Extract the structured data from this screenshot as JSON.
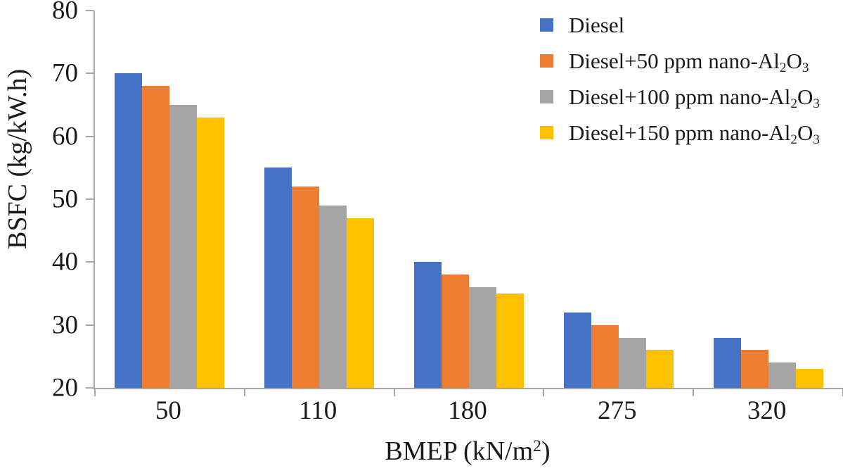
{
  "chart_data": {
    "type": "bar",
    "title": "",
    "xlabel": "BMEP (kN/m2)",
    "xlabel_segments": [
      {
        "t": "BMEP (kN/m"
      },
      {
        "t": "2",
        "style": "sup"
      },
      {
        "t": ")"
      }
    ],
    "ylabel": "BSFC (kg/kW.h)",
    "categories": [
      "50",
      "110",
      "180",
      "275",
      "320"
    ],
    "series": [
      {
        "name": "Diesel",
        "color": "#4472C4",
        "values": [
          70,
          55,
          40,
          32,
          28
        ],
        "label_segments": [
          {
            "t": "Diesel"
          }
        ]
      },
      {
        "name": "Diesel+50 ppm nano-Al2O3",
        "color": "#ED7D31",
        "values": [
          68,
          52,
          38,
          30,
          26
        ],
        "label_segments": [
          {
            "t": "Diesel+50 ppm nano-Al"
          },
          {
            "t": "2",
            "style": "sub"
          },
          {
            "t": "O"
          },
          {
            "t": "3",
            "style": "sub"
          }
        ]
      },
      {
        "name": "Diesel+100 ppm nano-Al2O3",
        "color": "#A5A5A5",
        "values": [
          65,
          49,
          36,
          28,
          24
        ],
        "label_segments": [
          {
            "t": "Diesel+100 ppm nano-Al"
          },
          {
            "t": "2",
            "style": "sub"
          },
          {
            "t": "O"
          },
          {
            "t": "3",
            "style": "sub"
          }
        ]
      },
      {
        "name": "Diesel+150 ppm nano-Al2O3",
        "color": "#FFC000",
        "values": [
          63,
          47,
          35,
          26,
          23
        ],
        "label_segments": [
          {
            "t": "Diesel+150 ppm nano-Al"
          },
          {
            "t": "2",
            "style": "sub"
          },
          {
            "t": "O"
          },
          {
            "t": "3",
            "style": "sub"
          }
        ]
      }
    ],
    "ylim": [
      20,
      80
    ],
    "yticks": [
      20,
      30,
      40,
      50,
      60,
      70,
      80
    ],
    "xtick_divisions": 5,
    "legend_position": "top-right",
    "grid": false,
    "axis_color": "#A6A6A6",
    "text_color": "#1A1A1A",
    "background": "#FFFFFF"
  }
}
